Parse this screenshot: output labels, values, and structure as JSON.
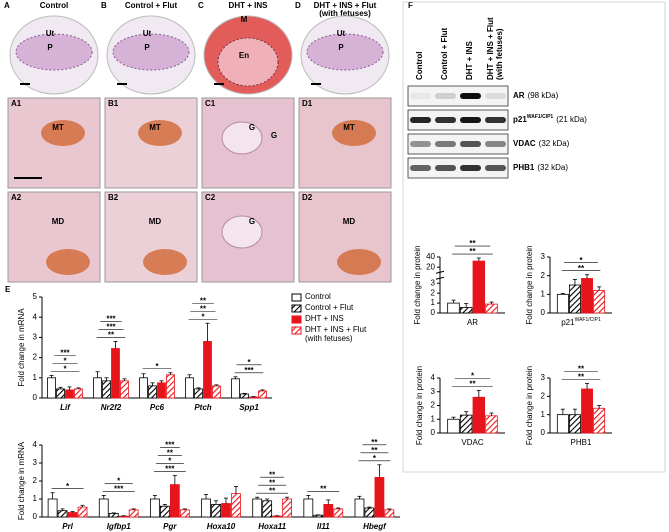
{
  "histology": [
    {
      "letter": "A",
      "title": [
        "Control"
      ],
      "overview": [
        "Ut",
        "P"
      ],
      "sections": [
        "A1",
        "A2"
      ],
      "section_labels": [
        [
          "MT"
        ],
        [
          "MD"
        ]
      ]
    },
    {
      "letter": "B",
      "title": [
        "Control + Flut"
      ],
      "overview": [
        "Ut",
        "P"
      ],
      "sections": [
        "B1",
        "B2"
      ],
      "section_labels": [
        [
          "MT"
        ],
        [
          "MD"
        ]
      ]
    },
    {
      "letter": "C",
      "title": [
        "DHT + INS"
      ],
      "overview": [
        "M",
        "En"
      ],
      "sections": [
        "C1",
        "C2"
      ],
      "section_labels": [
        [
          "G",
          "G"
        ],
        [
          "G"
        ]
      ]
    },
    {
      "letter": "D",
      "title": [
        "DHT + INS + Flut",
        "(with fetuses)"
      ],
      "overview": [
        "Ut",
        "P"
      ],
      "sections": [
        "D1",
        "D2"
      ],
      "section_labels": [
        [
          "MT"
        ],
        [
          "MD"
        ]
      ]
    }
  ],
  "blots": {
    "panel": "F",
    "lanes": [
      [
        "Control"
      ],
      [
        "Control + Flut"
      ],
      [
        "DHT + INS"
      ],
      [
        "DHT + INS + Flut",
        "(with fetuses)"
      ]
    ],
    "rows": [
      {
        "protein": "AR",
        "size": "(98 kDa)"
      },
      {
        "protein": "p21",
        "sup": "WAF1/CIP1",
        "size": "(21 kDa)"
      },
      {
        "protein": "VDAC",
        "size": "(32 kDa)"
      },
      {
        "protein": "PHB1",
        "size": "(32 kDa)"
      }
    ]
  },
  "chart_data": [
    {
      "type": "bar",
      "panel": "E",
      "ylabel": "Fold change in mRNA",
      "italic_categories": true,
      "categories": [
        "Lif",
        "Nr2f2",
        "Pc6",
        "Ptch",
        "Spp1"
      ],
      "ylim": [
        0,
        5
      ],
      "yticks": [
        0,
        1,
        2,
        3,
        4,
        5
      ],
      "series": [
        {
          "name": "Control",
          "color": "#ffffff",
          "values": [
            1.0,
            1.0,
            1.0,
            1.0,
            0.95
          ],
          "errors": [
            0.12,
            0.3,
            0.2,
            0.15,
            0.1
          ]
        },
        {
          "name": "Control + Flut",
          "color": "#000000",
          "hatch": true,
          "values": [
            0.45,
            0.85,
            0.6,
            0.45,
            0.2
          ],
          "errors": [
            0.08,
            0.15,
            0.15,
            0.05,
            0.03
          ]
        },
        {
          "name": "DHT + INS",
          "color": "#e8141c",
          "values": [
            0.4,
            2.45,
            0.75,
            2.8,
            0.05
          ],
          "errors": [
            0.15,
            0.35,
            0.1,
            0.9,
            0.02
          ]
        },
        {
          "name": "DHT + INS + Flut (with fetuses)",
          "color": "#e8141c",
          "hatch": true,
          "values": [
            0.45,
            0.85,
            1.15,
            0.6,
            0.35
          ],
          "errors": [
            0.05,
            0.1,
            0.1,
            0.05,
            0.05
          ]
        }
      ],
      "significance": [
        [
          "*",
          "*",
          "***"
        ],
        [
          "**",
          "***",
          "***"
        ],
        [
          "*"
        ],
        [
          "*",
          "**",
          "**"
        ],
        [
          "***",
          "*"
        ]
      ]
    },
    {
      "type": "bar",
      "ylabel": "Fold change in mRNA",
      "italic_categories": true,
      "categories": [
        "Prl",
        "Igfbp1",
        "Pgr",
        "Hoxa10",
        "Hoxa11",
        "Il11",
        "Hbegf"
      ],
      "ylim": [
        0,
        4
      ],
      "yticks": [
        0,
        1,
        2,
        3,
        4
      ],
      "series": [
        {
          "color": "#ffffff",
          "values": [
            1.0,
            1.0,
            1.0,
            1.0,
            1.0,
            1.0,
            1.0
          ],
          "errors": [
            0.35,
            0.2,
            0.2,
            0.25,
            0.1,
            0.2,
            0.15
          ]
        },
        {
          "color": "#000000",
          "hatch": true,
          "values": [
            0.35,
            0.2,
            0.6,
            0.7,
            0.9,
            0.1,
            0.5
          ],
          "errors": [
            0.1,
            0.03,
            0.1,
            0.2,
            0.1,
            0.02,
            0.05
          ]
        },
        {
          "color": "#e8141c",
          "values": [
            0.25,
            0.05,
            1.8,
            0.75,
            0.05,
            0.7,
            2.2
          ],
          "errors": [
            0.05,
            0.02,
            0.5,
            0.3,
            0.02,
            0.25,
            0.7
          ]
        },
        {
          "color": "#e8141c",
          "hatch": true,
          "values": [
            0.55,
            0.4,
            0.4,
            1.3,
            1.0,
            0.45,
            0.4
          ],
          "errors": [
            0.1,
            0.05,
            0.05,
            0.4,
            0.1,
            0.05,
            0.05
          ]
        }
      ],
      "significance": [
        [
          "*"
        ],
        [
          "***",
          "*"
        ],
        [
          "***",
          "*",
          "**",
          "***"
        ],
        [],
        [
          "**",
          "**",
          "**"
        ],
        [
          "**"
        ],
        [
          "*",
          "**",
          "**"
        ]
      ]
    },
    {
      "type": "bar",
      "ylabel": "Fold change in protein",
      "xlabel": "AR",
      "ylim": [
        0,
        40
      ],
      "yticks": [
        0,
        1,
        2,
        3,
        20,
        40
      ],
      "axis_break": [
        3.5,
        10
      ],
      "categories": [
        null
      ],
      "series": [
        {
          "color": "#ffffff",
          "values": [
            1.0
          ],
          "errors": [
            0.3
          ]
        },
        {
          "color": "#000000",
          "hatch": true,
          "values": [
            0.55
          ],
          "errors": [
            0.4
          ]
        },
        {
          "color": "#e8141c",
          "values": [
            32
          ],
          "errors": [
            6
          ]
        },
        {
          "color": "#e8141c",
          "hatch": true,
          "values": [
            0.9
          ],
          "errors": [
            0.2
          ]
        }
      ],
      "significance": [
        [
          "**",
          "**"
        ]
      ]
    },
    {
      "type": "bar",
      "ylabel": "Fold change in protein",
      "xlabel": "p21",
      "xlabel_sup": "WAF1/CIP1",
      "ylim": [
        0,
        3
      ],
      "yticks": [
        0,
        1,
        2,
        3
      ],
      "categories": [
        null
      ],
      "series": [
        {
          "color": "#ffffff",
          "values": [
            1.0
          ],
          "errors": [
            0.05
          ]
        },
        {
          "color": "#000000",
          "hatch": true,
          "values": [
            1.5
          ],
          "errors": [
            0.3
          ]
        },
        {
          "color": "#e8141c",
          "values": [
            1.85
          ],
          "errors": [
            0.2
          ]
        },
        {
          "color": "#e8141c",
          "hatch": true,
          "values": [
            1.2
          ],
          "errors": [
            0.2
          ]
        }
      ],
      "significance": [
        [
          "**",
          "*"
        ]
      ]
    },
    {
      "type": "bar",
      "ylabel": "Fold change in protein",
      "xlabel": "VDAC",
      "ylim": [
        0,
        4
      ],
      "yticks": [
        0,
        1,
        2,
        3,
        4
      ],
      "categories": [
        null
      ],
      "series": [
        {
          "color": "#ffffff",
          "values": [
            1.0
          ],
          "errors": [
            0.15
          ]
        },
        {
          "color": "#000000",
          "hatch": true,
          "values": [
            1.3
          ],
          "errors": [
            0.25
          ]
        },
        {
          "color": "#e8141c",
          "values": [
            2.6
          ],
          "errors": [
            0.5
          ]
        },
        {
          "color": "#e8141c",
          "hatch": true,
          "values": [
            1.25
          ],
          "errors": [
            0.2
          ]
        }
      ],
      "significance": [
        [
          "**",
          "*"
        ]
      ]
    },
    {
      "type": "bar",
      "ylabel": "Fold change in protein",
      "xlabel": "PHB1",
      "ylim": [
        0,
        3
      ],
      "yticks": [
        0,
        1,
        2,
        3
      ],
      "categories": [
        null
      ],
      "series": [
        {
          "color": "#ffffff",
          "values": [
            1.0
          ],
          "errors": [
            0.3
          ]
        },
        {
          "color": "#000000",
          "hatch": true,
          "values": [
            1.0
          ],
          "errors": [
            0.3
          ]
        },
        {
          "color": "#e8141c",
          "values": [
            2.4
          ],
          "errors": [
            0.3
          ]
        },
        {
          "color": "#e8141c",
          "hatch": true,
          "values": [
            1.35
          ],
          "errors": [
            0.15
          ]
        }
      ],
      "significance": [
        [
          "**",
          "**"
        ]
      ]
    }
  ]
}
